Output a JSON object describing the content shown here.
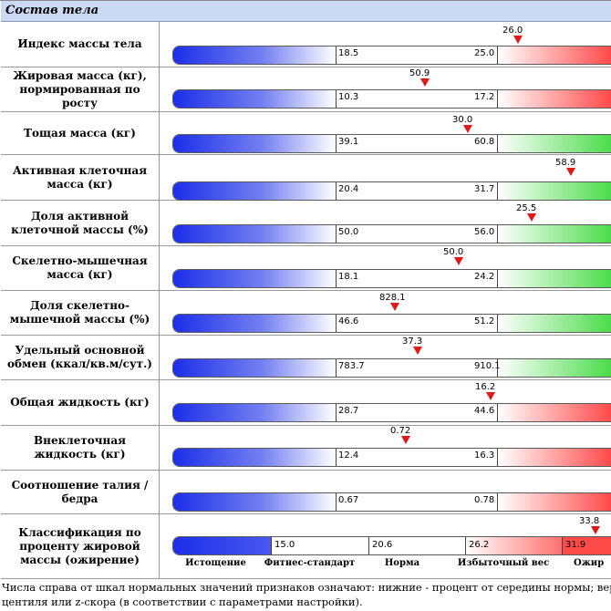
{
  "section_title": "Состав тела",
  "rows": [
    {
      "label": "Индекс массы тела",
      "low": "18.5",
      "high": "25.0",
      "value": "26.0",
      "high_zone": "red"
    },
    {
      "label": "Жировая масса (кг), нормированная по росту",
      "low": "10.3",
      "high": "17.2",
      "value": "",
      "high_zone": "red"
    },
    {
      "label": "Тощая масса (кг)",
      "low": "39.1",
      "high": "60.8",
      "value": "50.9",
      "high_zone": "green"
    },
    {
      "label": "Активная клеточная масса (кг)",
      "low": "20.4",
      "high": "31.7",
      "value": "30.0",
      "high_zone": "green"
    },
    {
      "label": "Доля активной клеточной массы (%)",
      "low": "50.0",
      "high": "56.0",
      "value": "58.9",
      "high_zone": "green"
    },
    {
      "label": "Скелетно-мышечная масса (кг)",
      "low": "18.1",
      "high": "24.2",
      "value": "25.5",
      "high_zone": "green"
    },
    {
      "label": "Доля скелетно-мышечной массы (%)",
      "low": "46.6",
      "high": "51.2",
      "value": "50.0",
      "high_zone": "green"
    },
    {
      "label": "Удельный основной обмен (ккал/кв.м/сут.)",
      "low": "783.7",
      "high": "910.1",
      "value": "828.1",
      "high_zone": "green"
    },
    {
      "label": "Общая жидкость (кг)",
      "low": "28.7",
      "high": "44.6",
      "value": "37.3",
      "high_zone": "red"
    },
    {
      "label": "Внеклеточная жидкость (кг)",
      "low": "12.4",
      "high": "16.3",
      "value": "16.2",
      "high_zone": "red"
    },
    {
      "label": "Соотношение талия / бедра",
      "low": "0.67",
      "high": "0.78",
      "value": "0.72",
      "high_zone": "red"
    }
  ],
  "classification": {
    "label": "Классификация по проценту жировой массы (ожирение)",
    "value": "33.8",
    "thresholds": [
      "15.0",
      "20.6",
      "26.2",
      "31.9"
    ],
    "categories": [
      "Истощение",
      "Фитнес-стандарт",
      "Норма",
      "Избыточный вес",
      "Ожир"
    ]
  },
  "footer": {
    "line1": "Числа справа от шкал нормальных значений признаков означают: нижние - процент от середины нормы; верхне",
    "line2": "центиля или z-скора (в соответствии с параметрами настройки)."
  }
}
